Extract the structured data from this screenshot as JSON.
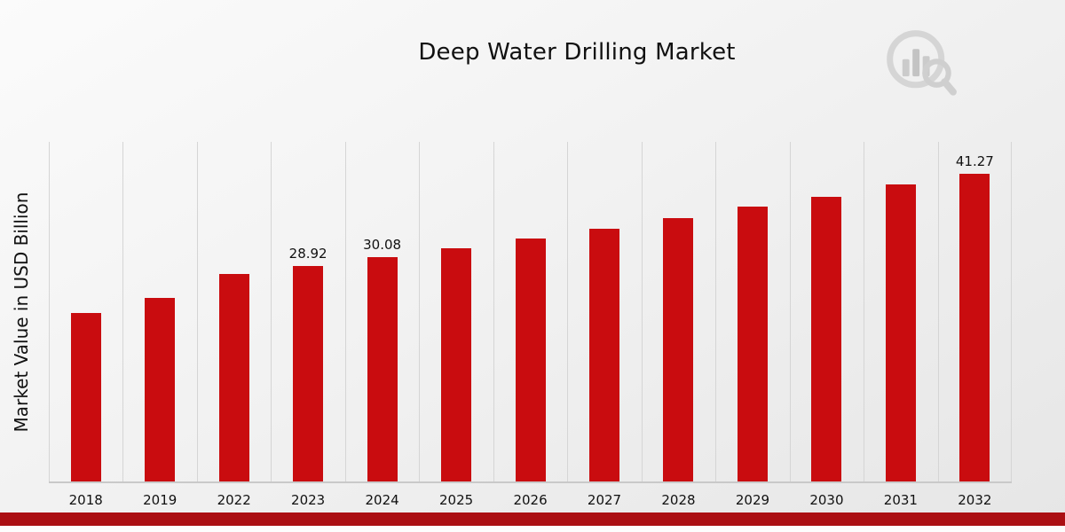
{
  "page": {
    "title": "Deep Water Drilling Market"
  },
  "logo": {
    "name": "market-research-brand-logo"
  },
  "chart_data": {
    "type": "bar",
    "title": "Deep Water Drilling Market",
    "xlabel": "",
    "ylabel": "Market Value in USD Billion",
    "ylim": [
      0,
      45.5
    ],
    "grid": "vertical-only",
    "legend": "none",
    "bar_color": "#c90c0f",
    "categories": [
      "2018",
      "2019",
      "2022",
      "2023",
      "2024",
      "2025",
      "2026",
      "2027",
      "2028",
      "2029",
      "2030",
      "2031",
      "2032"
    ],
    "values": [
      22.6,
      24.6,
      27.8,
      28.92,
      30.08,
      31.3,
      32.6,
      33.9,
      35.3,
      36.8,
      38.1,
      39.8,
      41.27
    ],
    "data_labels": {
      "2023": "28.92",
      "2024": "30.08",
      "2032": "41.27"
    },
    "footer_band_color": "#ab0f13"
  }
}
